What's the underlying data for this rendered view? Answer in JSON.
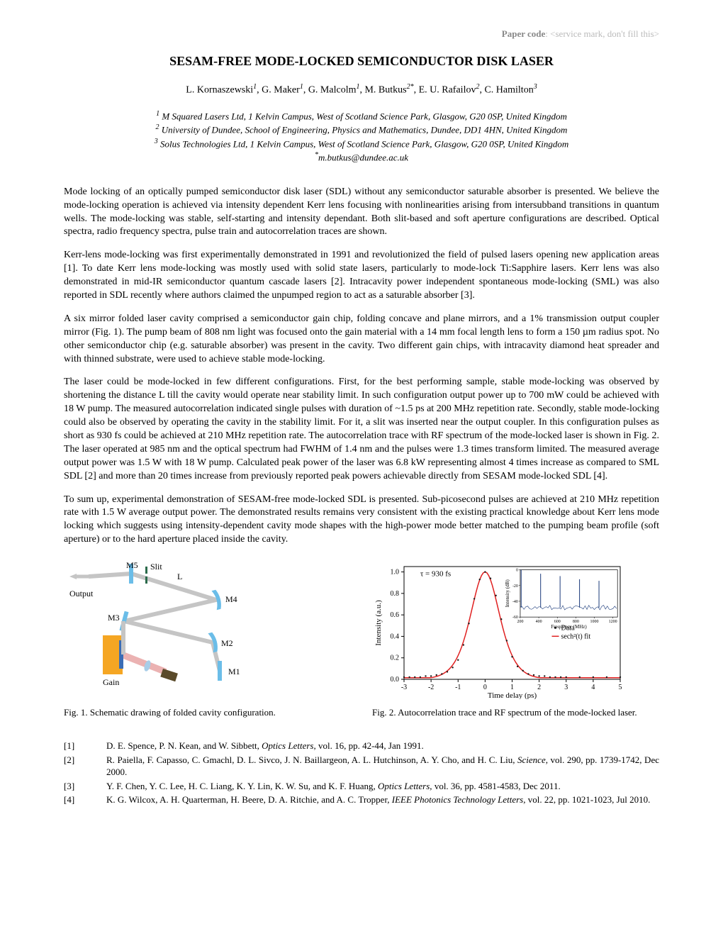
{
  "header": {
    "paper_code_label": "Paper code",
    "paper_code_value": ": <service mark, don't fill this>"
  },
  "title": "SESAM-FREE MODE-LOCKED SEMICONDUCTOR DISK LASER",
  "authors": [
    {
      "name": "L. Kornaszewski",
      "aff": "1"
    },
    {
      "name": "G. Maker",
      "aff": "1"
    },
    {
      "name": "G. Malcolm",
      "aff": "1"
    },
    {
      "name": "M. Butkus",
      "aff": "2*"
    },
    {
      "name": "E. U. Rafailov",
      "aff": "2"
    },
    {
      "name": "C. Hamilton",
      "aff": "3"
    }
  ],
  "affiliations": [
    {
      "num": "1",
      "text": "M Squared Lasers Ltd, 1 Kelvin Campus, West of Scotland Science Park, Glasgow, G20 0SP, United Kingdom"
    },
    {
      "num": "2",
      "text": "University of Dundee, School of Engineering, Physics and Mathematics, Dundee, DD1 4HN, United Kingdom"
    },
    {
      "num": "3",
      "text": "Solus Technologies Ltd, 1 Kelvin Campus, West of Scotland Science Park, Glasgow, G20 0SP, United Kingdom"
    }
  ],
  "email_marker": "*",
  "email": "m.butkus@dundee.ac.uk",
  "paragraphs": [
    "Mode locking of an optically pumped semiconductor disk laser (SDL) without any semiconductor saturable absorber is presented. We believe the mode-locking operation is achieved via intensity dependent Kerr lens focusing with nonlinearities arising from intersubband transitions in quantum wells. The mode-locking was stable, self-starting and intensity dependant. Both slit-based and soft aperture configurations are described. Optical spectra, radio frequency spectra, pulse train and autocorrelation traces are shown.",
    "Kerr-lens mode-locking was first experimentally demonstrated in 1991 and revolutionized the field of pulsed lasers opening new application areas [1]. To date Kerr lens mode-locking was mostly used with solid state lasers, particularly to mode-lock Ti:Sapphire lasers. Kerr lens was also demonstrated in mid-IR semiconductor quantum cascade lasers [2]. Intracavity power independent spontaneous mode-locking (SML) was also reported in SDL recently where authors claimed the unpumped region to act as a saturable absorber [3].",
    "A six mirror folded laser cavity comprised a semiconductor gain chip, folding concave and plane mirrors, and a 1% transmission output coupler mirror (Fig. 1). The pump beam of 808 nm light was focused onto the gain material with a 14 mm focal length lens to form a 150 µm radius spot. No other semiconductor chip (e.g. saturable absorber) was present in the cavity. Two different gain chips, with intracavity diamond heat spreader and with thinned substrate, were used to achieve stable mode-locking.",
    "The laser could be mode-locked in few different configurations. First, for the best performing sample, stable mode-locking was observed by shortening the distance L till the cavity would operate near stability limit. In such configuration output power up to 700 mW could be achieved with 18 W pump. The measured autocorrelation indicated single pulses with duration of ~1.5 ps at 200 MHz repetition rate. Secondly, stable mode-locking could also be observed by operating the cavity in the stability limit. For it, a slit was inserted near the output coupler. In this configuration pulses as short as 930 fs could be achieved at 210 MHz repetition rate. The autocorrelation trace with RF spectrum of the mode-locked laser is shown in Fig. 2. The laser operated at 985 nm and the optical spectrum had FWHM of 1.4 nm and the pulses were 1.3 times transform limited. The measured average output power was 1.5 W with 18 W pump. Calculated peak power of the laser was 6.8 kW representing almost 4 times increase as compared to SML SDL [2] and more than 20 times increase from previously reported peak powers achievable directly from SESAM mode-locked SDL [4].",
    "To sum up, experimental demonstration of SESAM-free mode-locked SDL is presented. Sub-picosecond pulses are achieved at 210 MHz repetition rate with 1.5 W average output power. The demonstrated results remains very consistent with the existing practical knowledge about Kerr lens mode locking which suggests using intensity-dependent cavity mode shapes with the high-power mode better matched to the pumping beam profile (soft aperture) or to the hard aperture placed inside the cavity."
  ],
  "fig1": {
    "caption": "Fig. 1. Schematic drawing of folded cavity configuration.",
    "labels": {
      "m5": "M5",
      "slit": "Slit",
      "l": "L",
      "output": "Output",
      "m4": "M4",
      "m3": "M3",
      "m2": "M2",
      "m1": "M1",
      "gain": "Gain"
    },
    "colors": {
      "mirror": "#6bbde8",
      "mirror_end": "#4a9cc7",
      "beam": "#c5c5c5",
      "gain_box": "#f5a623",
      "gain_chip": "#3b6db5",
      "pump": "#e8a5a5",
      "pump_source": "#5a4a2a"
    }
  },
  "fig2": {
    "caption": "Fig. 2. Autocorrelation trace and RF spectrum of the mode-locked laser.",
    "type": "line",
    "main": {
      "xlabel": "Time delay (ps)",
      "ylabel": "Intensity (a.u.)",
      "xlim": [
        -3,
        5
      ],
      "ylim": [
        0,
        1.05
      ],
      "xticks": [
        -3,
        -2,
        -1,
        0,
        1,
        2,
        3,
        4,
        5
      ],
      "yticks": [
        0.0,
        0.2,
        0.4,
        0.6,
        0.8,
        1.0
      ],
      "tau_label": "τ = 930 fs",
      "legend": {
        "data": "Data",
        "fit": "sech²(t) fit"
      },
      "data_color": "#1a1a1a",
      "fit_color": "#e02020",
      "data_points": [
        [
          -3.0,
          0.02
        ],
        [
          -2.8,
          0.02
        ],
        [
          -2.6,
          0.02
        ],
        [
          -2.4,
          0.02
        ],
        [
          -2.2,
          0.03
        ],
        [
          -2.0,
          0.03
        ],
        [
          -1.8,
          0.04
        ],
        [
          -1.6,
          0.05
        ],
        [
          -1.4,
          0.07
        ],
        [
          -1.2,
          0.11
        ],
        [
          -1.0,
          0.18
        ],
        [
          -0.8,
          0.32
        ],
        [
          -0.6,
          0.52
        ],
        [
          -0.4,
          0.75
        ],
        [
          -0.2,
          0.93
        ],
        [
          0.0,
          1.0
        ],
        [
          0.2,
          0.94
        ],
        [
          0.4,
          0.78
        ],
        [
          0.6,
          0.56
        ],
        [
          0.8,
          0.36
        ],
        [
          1.0,
          0.21
        ],
        [
          1.2,
          0.12
        ],
        [
          1.4,
          0.08
        ],
        [
          1.6,
          0.05
        ],
        [
          1.8,
          0.04
        ],
        [
          2.0,
          0.03
        ],
        [
          2.2,
          0.03
        ],
        [
          2.4,
          0.02
        ],
        [
          2.6,
          0.02
        ],
        [
          2.8,
          0.02
        ],
        [
          3.0,
          0.02
        ],
        [
          3.5,
          0.02
        ],
        [
          4.0,
          0.02
        ],
        [
          4.5,
          0.02
        ],
        [
          5.0,
          0.02
        ]
      ]
    },
    "inset": {
      "xlabel": "Frequency (MHz)",
      "ylabel": "Intensity (dB)",
      "xlim": [
        200,
        1250
      ],
      "ylim": [
        -60,
        0
      ],
      "xticks": [
        200,
        400,
        600,
        800,
        1000,
        1200
      ],
      "yticks": [
        -60,
        -40,
        -20,
        0
      ],
      "peak_freqs": [
        210,
        420,
        630,
        840,
        1050
      ],
      "peak_heights": [
        0,
        -5,
        -8,
        -12,
        -14
      ],
      "noise_floor": -48,
      "color": "#1a3a7a"
    }
  },
  "references": [
    {
      "num": "[1]",
      "text": "D. E. Spence, P. N. Kean, and W. Sibbett, <em>Optics Letters,</em> vol. 16, pp. 42-44, Jan 1991."
    },
    {
      "num": "[2]",
      "text": "R. Paiella, F. Capasso, C. Gmachl, D. L. Sivco, J. N. Baillargeon, A. L. Hutchinson, A. Y. Cho, and H. C. Liu, <em>Science,</em> vol. 290, pp. 1739-1742, Dec 2000."
    },
    {
      "num": "[3]",
      "text": "Y. F. Chen, Y. C. Lee, H. C. Liang, K. Y. Lin, K. W. Su, and K. F. Huang, <em>Optics Letters,</em> vol. 36, pp. 4581-4583, Dec 2011."
    },
    {
      "num": "[4]",
      "text": "K. G. Wilcox, A. H. Quarterman, H. Beere, D. A. Ritchie, and A. C. Tropper, <em>IEEE Photonics Technology Letters,</em> vol. 22, pp. 1021-1023, Jul 2010."
    }
  ]
}
